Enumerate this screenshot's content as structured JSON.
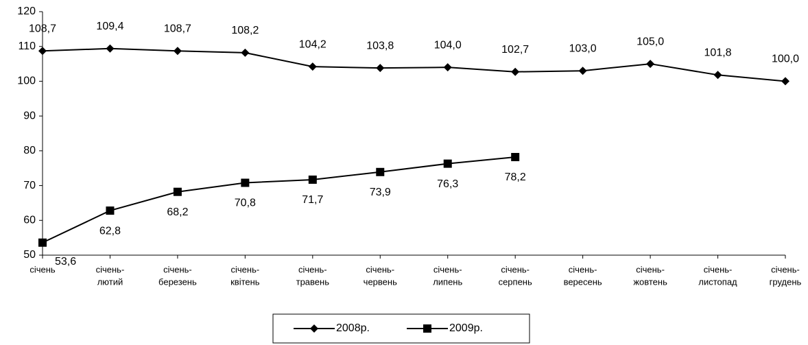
{
  "chart_data": {
    "type": "line",
    "categories": [
      [
        "січень"
      ],
      [
        "січень-",
        "лютий"
      ],
      [
        "січень-",
        "березень"
      ],
      [
        "січень-",
        "квітень"
      ],
      [
        "січень-",
        "травень"
      ],
      [
        "січень-",
        "червень"
      ],
      [
        "січень-",
        "липень"
      ],
      [
        "січень-",
        "серпень"
      ],
      [
        "січень-",
        "вересень"
      ],
      [
        "січень-",
        "жовтень"
      ],
      [
        "січень-",
        "листопад"
      ],
      [
        "січень-",
        "грудень"
      ]
    ],
    "series": [
      {
        "name": "2008р.",
        "color": "#000000",
        "marker": "diamond",
        "values": [
          108.7,
          109.4,
          108.7,
          108.2,
          104.2,
          103.8,
          104.0,
          102.7,
          103.0,
          105.0,
          101.8,
          100.0
        ],
        "value_labels": [
          "108,7",
          "109,4",
          "108,7",
          "108,2",
          "104,2",
          "103,8",
          "104,0",
          "102,7",
          "103,0",
          "105,0",
          "101,8",
          "100,0"
        ]
      },
      {
        "name": "2009р.",
        "color": "#000000",
        "marker": "square",
        "values": [
          53.6,
          62.8,
          68.2,
          70.8,
          71.7,
          73.9,
          76.3,
          78.2,
          null,
          null,
          null,
          null
        ],
        "value_labels": [
          "53,6",
          "62,8",
          "68,2",
          "70,8",
          "71,7",
          "73,9",
          "76,3",
          "78,2",
          null,
          null,
          null,
          null
        ]
      }
    ],
    "ylim": [
      50,
      120
    ],
    "yticks": [
      50,
      60,
      70,
      80,
      90,
      100,
      110,
      120
    ],
    "grid": false,
    "legend": "bottom"
  }
}
